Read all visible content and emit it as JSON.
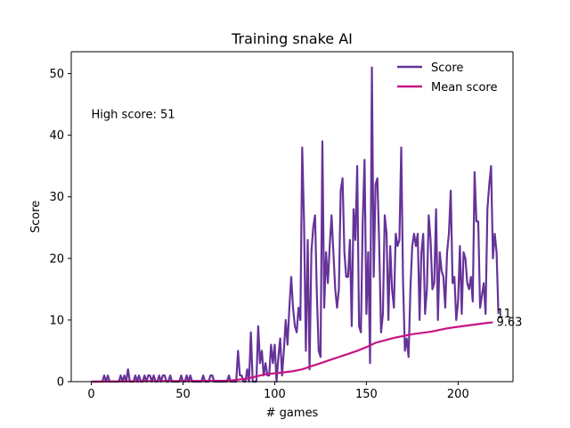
{
  "chart_data": {
    "type": "line",
    "title": "Training snake AI",
    "xlabel": "# games",
    "ylabel": "Score",
    "xlim": [
      -10.95,
      229.95
    ],
    "ylim": [
      0,
      53.55
    ],
    "xticks": [
      0,
      50,
      100,
      150,
      200
    ],
    "yticks": [
      0,
      10,
      20,
      30,
      40,
      50
    ],
    "grid": false,
    "legend_position": "top-right",
    "series": [
      {
        "name": "Score",
        "color": "#663399",
        "x_start": 0,
        "values": [
          0,
          0,
          0,
          0,
          0,
          0,
          0,
          1,
          0,
          1,
          0,
          0,
          0,
          0,
          0,
          0,
          1,
          0,
          1,
          0,
          2,
          0,
          0,
          0,
          1,
          0,
          1,
          0,
          0,
          1,
          0,
          1,
          1,
          0,
          1,
          0,
          0,
          1,
          0,
          1,
          1,
          0,
          0,
          1,
          0,
          0,
          0,
          0,
          0,
          1,
          0,
          0,
          1,
          0,
          1,
          0,
          0,
          0,
          0,
          0,
          0,
          1,
          0,
          0,
          0,
          1,
          1,
          0,
          0,
          0,
          0,
          0,
          0,
          0,
          0,
          1,
          0,
          0,
          0,
          0,
          5,
          1,
          1,
          0,
          0,
          2,
          0,
          8,
          0,
          0,
          0,
          9,
          3,
          5,
          1,
          3,
          1,
          1,
          6,
          3,
          6,
          0,
          4,
          7,
          1,
          5,
          10,
          6,
          12,
          17,
          12,
          9,
          8,
          12,
          10,
          38,
          26,
          5,
          23,
          2,
          21,
          25,
          27,
          14,
          5,
          4,
          39,
          12,
          21,
          16,
          22,
          27,
          21,
          15,
          12,
          15,
          31,
          33,
          21,
          17,
          17,
          23,
          9,
          28,
          23,
          35,
          9,
          8,
          26,
          36,
          11,
          21,
          3,
          51,
          17,
          32,
          33,
          22,
          8,
          11,
          27,
          24,
          10,
          22,
          15,
          12,
          24,
          22,
          23,
          38,
          16,
          5,
          7,
          4,
          15,
          22,
          24,
          22,
          24,
          10,
          21,
          24,
          11,
          15,
          27,
          23,
          15,
          16,
          28,
          10,
          21,
          18,
          17,
          12,
          21,
          24,
          31,
          16,
          17,
          10,
          13,
          22,
          11,
          21,
          20,
          16,
          15,
          17,
          13,
          34,
          26,
          26,
          12,
          14,
          16,
          11,
          28,
          32,
          35,
          20,
          24,
          21,
          11
        ]
      },
      {
        "name": "Mean score",
        "color": "#c71585",
        "x": [
          0,
          20,
          40,
          60,
          75,
          85,
          95,
          105,
          110,
          115,
          120,
          125,
          130,
          135,
          140,
          145,
          150,
          155,
          160,
          165,
          170,
          175,
          180,
          185,
          190,
          195,
          200,
          205,
          210,
          215,
          219
        ],
        "values": [
          0,
          0.05,
          0.1,
          0.12,
          0.15,
          0.5,
          1.2,
          1.5,
          1.7,
          2.0,
          2.5,
          3.0,
          3.5,
          4.0,
          4.5,
          5.0,
          5.6,
          6.3,
          6.7,
          7.1,
          7.4,
          7.7,
          7.9,
          8.1,
          8.4,
          8.7,
          8.9,
          9.1,
          9.3,
          9.5,
          9.63
        ]
      }
    ],
    "annotations": [
      {
        "text": "High score: 51",
        "x": 0,
        "y": 43.5
      },
      {
        "text": "11",
        "x": 219,
        "y": 11
      },
      {
        "text": "9.63",
        "x": 219,
        "y": 9.63
      }
    ]
  }
}
